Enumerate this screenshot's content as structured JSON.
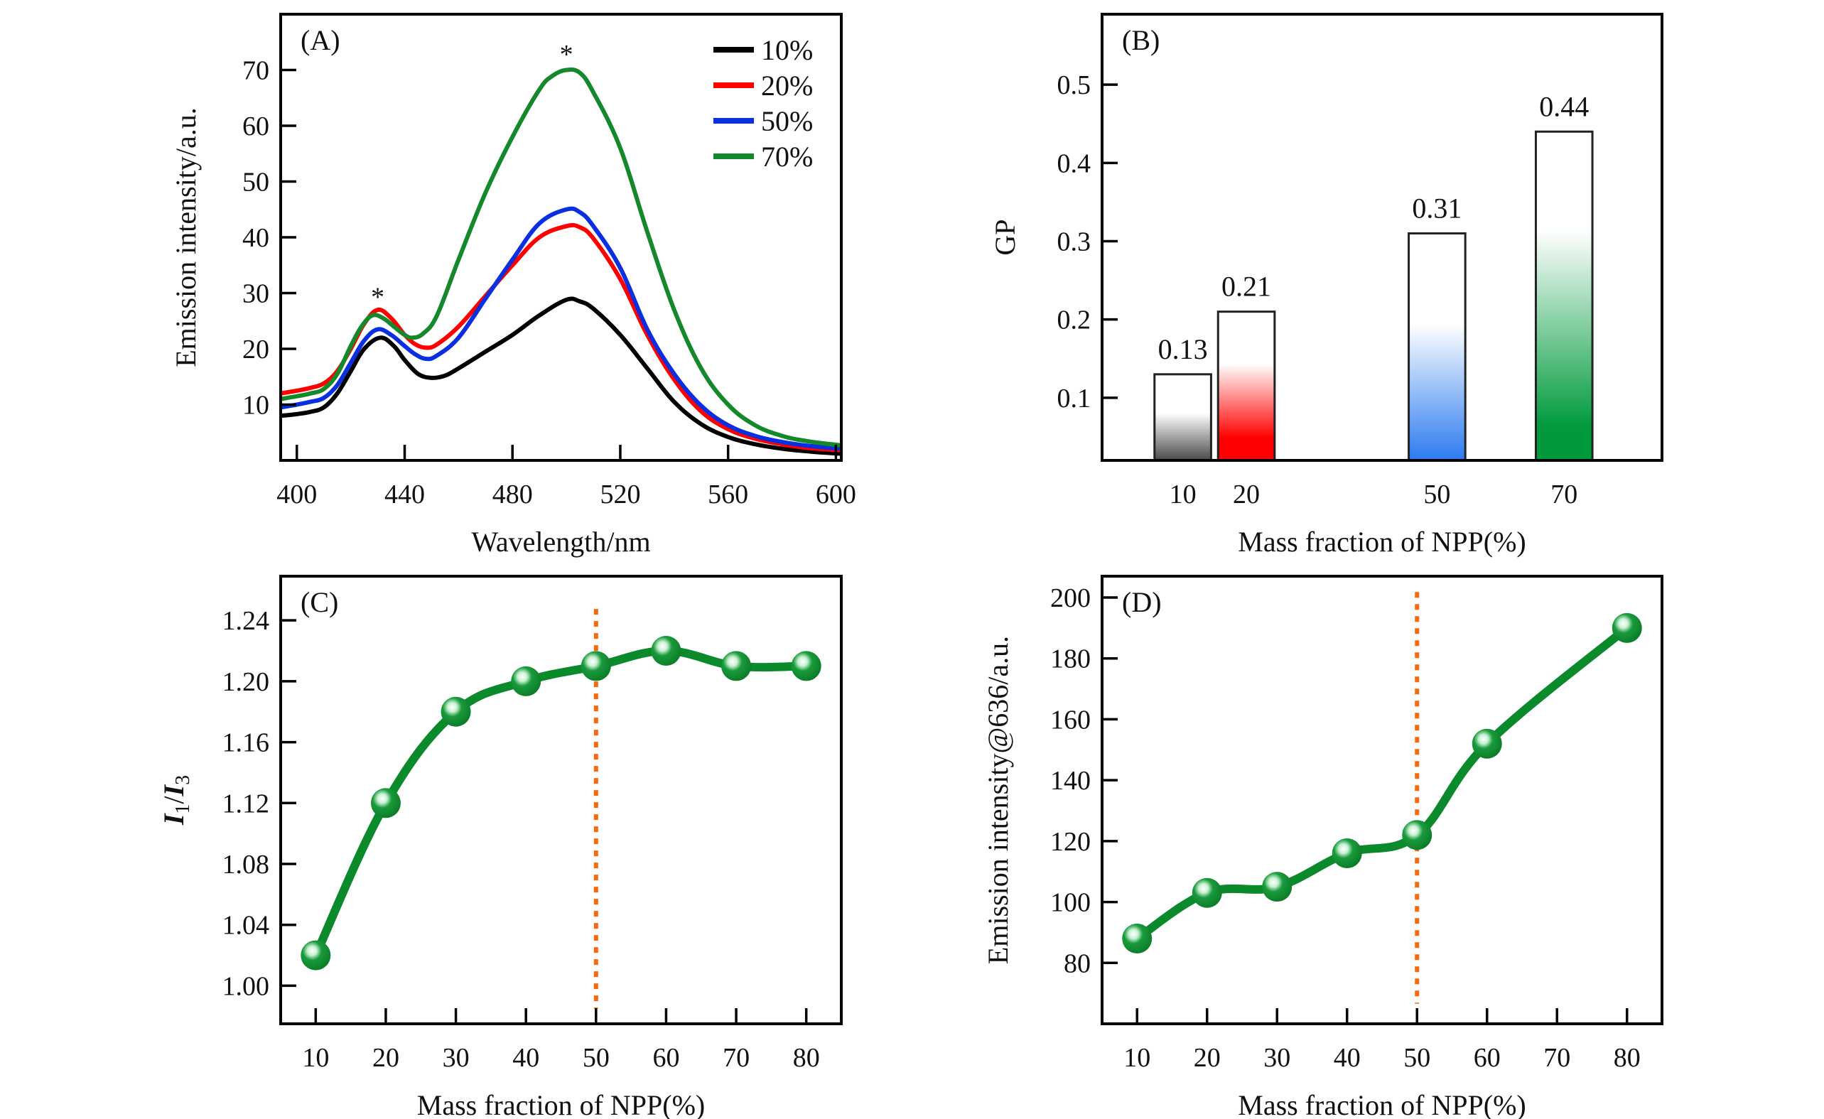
{
  "figure": {
    "panels": [
      "(A)",
      "(B)",
      "(C)",
      "(D)"
    ]
  },
  "chart_data": [
    {
      "id": "A",
      "type": "line",
      "panel_label": "(A)",
      "title": "",
      "xlabel": "Wavelength/nm",
      "ylabel": "Emission intensity/a.u.",
      "xlim": [
        394,
        602
      ],
      "ylim": [
        0,
        80
      ],
      "xticks": [
        400,
        440,
        480,
        520,
        560,
        600
      ],
      "yticks": [
        10,
        20,
        30,
        40,
        50,
        60,
        70
      ],
      "grid": false,
      "legend": "top-right",
      "annotations": [
        {
          "text": "*",
          "x": 430,
          "y": 29.5
        },
        {
          "text": "*",
          "x": 500,
          "y": 73
        }
      ],
      "series": [
        {
          "name": "10%",
          "color": "#000000",
          "x": [
            394,
            400,
            405,
            410,
            415,
            420,
            425,
            431,
            436,
            440,
            445,
            450,
            455,
            460,
            470,
            480,
            490,
            500,
            505,
            510,
            520,
            530,
            540,
            550,
            560,
            570,
            580,
            590,
            602
          ],
          "y": [
            8,
            8.3,
            8.7,
            9.5,
            12,
            16,
            20,
            22,
            20.5,
            18,
            15.5,
            14.8,
            15.2,
            16.5,
            19.5,
            22.5,
            26,
            28.8,
            28.5,
            27.2,
            22.5,
            16.5,
            10.5,
            6.5,
            4.2,
            2.9,
            2.1,
            1.6,
            1.2
          ]
        },
        {
          "name": "20%",
          "color": "#ff0000",
          "x": [
            394,
            400,
            405,
            410,
            415,
            420,
            425,
            430,
            435,
            440,
            444,
            448,
            452,
            460,
            470,
            480,
            490,
            500,
            505,
            510,
            520,
            530,
            540,
            550,
            560,
            570,
            580,
            590,
            602
          ],
          "y": [
            12,
            12.5,
            13,
            13.8,
            16,
            20,
            24.5,
            27,
            25.5,
            22.5,
            20.8,
            20.2,
            20.8,
            24,
            29.5,
            35,
            40,
            42,
            41.8,
            39.8,
            32.5,
            22.5,
            14.5,
            8.8,
            5.6,
            3.9,
            2.9,
            2.2,
            1.8
          ]
        },
        {
          "name": "50%",
          "color": "#0a2fe0",
          "x": [
            394,
            400,
            405,
            410,
            415,
            420,
            425,
            430,
            435,
            440,
            444,
            448,
            452,
            460,
            470,
            480,
            490,
            500,
            505,
            510,
            520,
            530,
            540,
            550,
            560,
            570,
            580,
            590,
            602
          ],
          "y": [
            9.5,
            10,
            10.5,
            11.2,
            13.5,
            17.5,
            21.5,
            23.5,
            22.5,
            20.5,
            19,
            18.2,
            18.8,
            22,
            29,
            36,
            42.5,
            45,
            44.5,
            42,
            34.5,
            23.5,
            15.5,
            9.8,
            6.3,
            4.4,
            3.3,
            2.6,
            2.1
          ]
        },
        {
          "name": "70%",
          "color": "#14892c",
          "x": [
            394,
            400,
            405,
            410,
            415,
            420,
            424,
            428,
            432,
            436,
            440,
            443,
            447,
            452,
            460,
            470,
            480,
            490,
            495,
            500,
            505,
            510,
            520,
            530,
            540,
            550,
            560,
            570,
            580,
            590,
            602
          ],
          "y": [
            11,
            11.5,
            12,
            12.8,
            15.5,
            20.5,
            24,
            26,
            25.5,
            24,
            22.5,
            22,
            22.8,
            26,
            36,
            48,
            58,
            66.5,
            69,
            70,
            69.5,
            66,
            56,
            41,
            27,
            16.5,
            10,
            6.3,
            4.4,
            3.4,
            2.7
          ]
        }
      ]
    },
    {
      "id": "B",
      "type": "bar",
      "panel_label": "(B)",
      "title": "",
      "xlabel": "Mass fraction of NPP(%)",
      "ylabel": "GP",
      "xlim": [
        -2.7,
        85.4
      ],
      "ylim": [
        0.02,
        0.59
      ],
      "yticks": [
        0.1,
        0.2,
        0.3,
        0.4,
        0.5
      ],
      "ytick_labels": [
        "0.1",
        "0.2",
        "0.3",
        "0.4",
        "0.5"
      ],
      "grid": false,
      "categories": [
        "10",
        "20",
        "50",
        "70"
      ],
      "x": [
        10,
        20,
        50,
        70
      ],
      "values": [
        0.13,
        0.21,
        0.31,
        0.44
      ],
      "value_labels": [
        "0.13",
        "0.21",
        "0.31",
        "0.44"
      ],
      "bar_width_units": 8.9,
      "colors": [
        "#555555",
        "#ff0000",
        "#2b7bf0",
        "#009a3c"
      ]
    },
    {
      "id": "C",
      "type": "line",
      "panel_label": "(C)",
      "title": "",
      "xlabel": "Mass fraction of NPP(%)",
      "ylabel": "I1/I3",
      "xlim": [
        5,
        85
      ],
      "ylim": [
        0.975,
        1.269
      ],
      "xticks": [
        10,
        20,
        30,
        40,
        50,
        60,
        70,
        80
      ],
      "yticks": [
        1.0,
        1.04,
        1.08,
        1.12,
        1.16,
        1.2,
        1.24
      ],
      "ytick_labels": [
        "1.00",
        "1.04",
        "1.08",
        "1.12",
        "1.16",
        "1.20",
        "1.24"
      ],
      "grid": false,
      "series": [
        {
          "name": "I1/I3",
          "color": "#0a8a2a",
          "x": [
            10,
            20,
            30,
            40,
            50,
            60,
            70,
            80
          ],
          "y": [
            1.02,
            1.12,
            1.18,
            1.2,
            1.21,
            1.22,
            1.21,
            1.21
          ]
        }
      ],
      "reference_line": {
        "x": 50,
        "y_range": [
          0.985,
          1.2475
        ],
        "color": "#f26b0f",
        "style": "dotted"
      }
    },
    {
      "id": "D",
      "type": "line",
      "panel_label": "(D)",
      "title": "",
      "xlabel": "Mass fraction of NPP(%)",
      "ylabel": "Emission intensity@636/a.u.",
      "xlim": [
        5,
        85
      ],
      "ylim": [
        60,
        207
      ],
      "xticks": [
        10,
        20,
        30,
        40,
        50,
        60,
        70,
        80
      ],
      "yticks": [
        80,
        100,
        120,
        140,
        160,
        180,
        200
      ],
      "grid": false,
      "series": [
        {
          "name": "Emission intensity@636",
          "color": "#0a8a2a",
          "x": [
            10,
            20,
            30,
            40,
            50,
            60,
            80
          ],
          "y": [
            88,
            103,
            105,
            116,
            122,
            152,
            190
          ]
        }
      ],
      "reference_line": {
        "x": 50,
        "y_range": [
          66.6,
          201.8
        ],
        "color": "#f26b0f",
        "style": "dotted"
      }
    }
  ]
}
